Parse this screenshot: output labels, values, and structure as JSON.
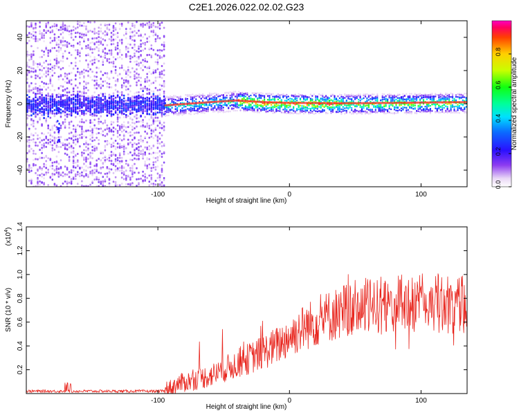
{
  "title": "C2E1.2026.022.02.02.G23",
  "colors": {
    "trace": "#e8241c",
    "axis": "#000000"
  },
  "chart_data": [
    {
      "type": "heatmap",
      "name": "spectrogram",
      "xlabel": "Height of straight line (km)",
      "ylabel": "Frequency (Hz)",
      "xlim": [
        -200,
        135
      ],
      "ylim": [
        -50,
        50
      ],
      "xticks": [
        {
          "value": -100,
          "label": "-100"
        },
        {
          "value": 0,
          "label": "0"
        },
        {
          "value": 100,
          "label": "100"
        }
      ],
      "yticks": [
        {
          "value": 40,
          "label": "40"
        },
        {
          "value": 20,
          "label": "20"
        },
        {
          "value": 0,
          "label": "0"
        },
        {
          "value": -20,
          "label": "-20"
        },
        {
          "value": -40,
          "label": "-40"
        }
      ],
      "ridge": [
        {
          "x": -95,
          "y": -1.0
        },
        {
          "x": -60,
          "y": 1.0
        },
        {
          "x": -40,
          "y": 2.0
        },
        {
          "x": -20,
          "y": 1.0
        },
        {
          "x": 0,
          "y": 0.5
        },
        {
          "x": 40,
          "y": 0.3
        },
        {
          "x": 80,
          "y": 0.5
        },
        {
          "x": 135,
          "y": 1.0
        }
      ],
      "colorbar": {
        "label": "Normalized spectral amplitude",
        "range": [
          0,
          1
        ],
        "ticks": [
          {
            "value": 0.0,
            "label": "0.0"
          },
          {
            "value": 0.2,
            "label": "0.2"
          },
          {
            "value": 0.4,
            "label": "0.4"
          },
          {
            "value": 0.6,
            "label": "0.6"
          },
          {
            "value": 0.8,
            "label": "0.8"
          }
        ]
      }
    },
    {
      "type": "line",
      "name": "snr",
      "xlabel": "Height of straight line (km)",
      "ylabel": "SNR (10 * v/v)",
      "multiplier": "(x10",
      "multiplier_exp": "4",
      "multiplier_close": ")",
      "xlim": [
        -200,
        135
      ],
      "ylim": [
        0,
        1.4
      ],
      "xticks": [
        {
          "value": -100,
          "label": "-100"
        },
        {
          "value": 0,
          "label": "0"
        },
        {
          "value": 100,
          "label": "100"
        }
      ],
      "yticks": [
        {
          "value": 1.4,
          "label": "1.4"
        },
        {
          "value": 1.2,
          "label": "1.2"
        },
        {
          "value": 1.0,
          "label": "1.0"
        },
        {
          "value": 0.8,
          "label": "0.8"
        },
        {
          "value": 0.6,
          "label": "0.6"
        },
        {
          "value": 0.4,
          "label": "0.4"
        },
        {
          "value": 0.2,
          "label": "0.2"
        }
      ],
      "trend": [
        {
          "x": -200,
          "y": 0.02
        },
        {
          "x": -95,
          "y": 0.02
        },
        {
          "x": -85,
          "y": 0.08
        },
        {
          "x": -60,
          "y": 0.15
        },
        {
          "x": -40,
          "y": 0.25
        },
        {
          "x": -25,
          "y": 0.32
        },
        {
          "x": -10,
          "y": 0.4
        },
        {
          "x": 10,
          "y": 0.55
        },
        {
          "x": 30,
          "y": 0.65
        },
        {
          "x": 50,
          "y": 0.72
        },
        {
          "x": 80,
          "y": 0.75
        },
        {
          "x": 110,
          "y": 0.76
        },
        {
          "x": 135,
          "y": 0.74
        }
      ]
    }
  ]
}
